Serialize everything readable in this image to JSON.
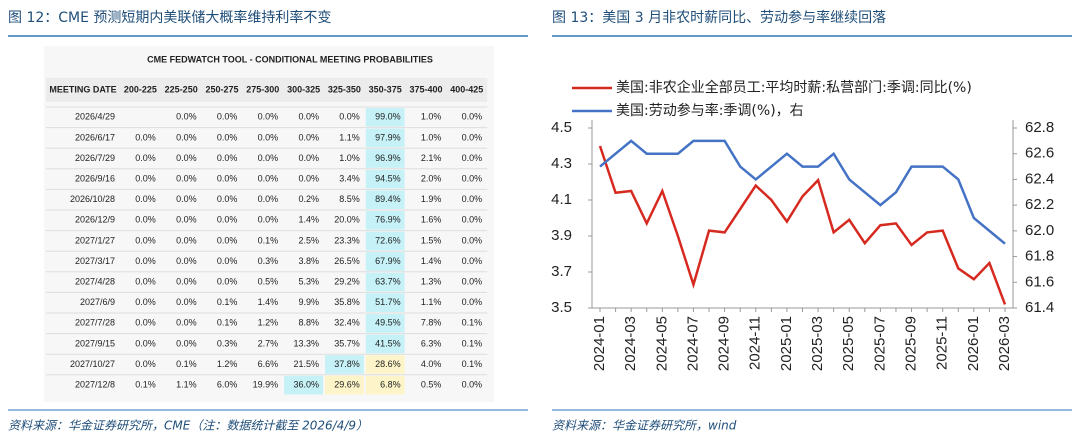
{
  "figure_left": {
    "title": "图 12：CME 预测短期内美联储大概率维持利率不变",
    "table": {
      "title": "CME FEDWATCH TOOL - CONDITIONAL MEETING PROBABILITIES",
      "header": [
        "MEETING DATE",
        "200-225",
        "225-250",
        "250-275",
        "275-300",
        "300-325",
        "325-350",
        "350-375",
        "375-400",
        "400-425"
      ],
      "rows": [
        [
          "2026/4/29",
          null,
          "0.0%",
          "0.0%",
          "0.0%",
          "0.0%",
          "0.0%",
          "99.0%",
          "1.0%",
          "0.0%"
        ],
        [
          "2026/6/17",
          "0.0%",
          "0.0%",
          "0.0%",
          "0.0%",
          "0.0%",
          "1.1%",
          "97.9%",
          "1.0%",
          "0.0%"
        ],
        [
          "2026/7/29",
          "0.0%",
          "0.0%",
          "0.0%",
          "0.0%",
          "0.0%",
          "1.0%",
          "96.9%",
          "2.1%",
          "0.0%"
        ],
        [
          "2026/9/16",
          "0.0%",
          "0.0%",
          "0.0%",
          "0.0%",
          "0.0%",
          "3.4%",
          "94.5%",
          "2.0%",
          "0.0%"
        ],
        [
          "2026/10/28",
          "0.0%",
          "0.0%",
          "0.0%",
          "0.0%",
          "0.2%",
          "8.5%",
          "89.4%",
          "1.9%",
          "0.0%"
        ],
        [
          "2026/12/9",
          "0.0%",
          "0.0%",
          "0.0%",
          "0.0%",
          "1.4%",
          "20.0%",
          "76.9%",
          "1.6%",
          "0.0%"
        ],
        [
          "2027/1/27",
          "0.0%",
          "0.0%",
          "0.0%",
          "0.1%",
          "2.5%",
          "23.3%",
          "72.6%",
          "1.5%",
          "0.0%"
        ],
        [
          "2027/3/17",
          "0.0%",
          "0.0%",
          "0.0%",
          "0.3%",
          "3.8%",
          "26.5%",
          "67.9%",
          "1.4%",
          "0.0%"
        ],
        [
          "2027/4/28",
          "0.0%",
          "0.0%",
          "0.0%",
          "0.5%",
          "5.3%",
          "29.2%",
          "63.7%",
          "1.3%",
          "0.0%"
        ],
        [
          "2027/6/9",
          "0.0%",
          "0.0%",
          "0.1%",
          "1.4%",
          "9.9%",
          "35.8%",
          "51.7%",
          "1.1%",
          "0.0%"
        ],
        [
          "2027/7/28",
          "0.0%",
          "0.0%",
          "0.1%",
          "1.2%",
          "8.8%",
          "32.4%",
          "49.5%",
          "7.8%",
          "0.1%"
        ],
        [
          "2027/9/15",
          "0.0%",
          "0.0%",
          "0.3%",
          "2.7%",
          "13.3%",
          "35.7%",
          "41.5%",
          "6.3%",
          "0.1%"
        ],
        [
          "2027/10/27",
          "0.0%",
          "0.1%",
          "1.2%",
          "6.6%",
          "21.5%",
          "37.8%",
          "28.6%",
          "4.0%",
          "0.1%"
        ],
        [
          "2027/12/8",
          "0.1%",
          "1.1%",
          "6.0%",
          "19.9%",
          "36.0%",
          "29.6%",
          "6.8%",
          "0.5%",
          "0.0%"
        ]
      ]
    },
    "source": "资料来源：华金证券研究所，CME（注：数据统计截至 2026/4/9）"
  },
  "figure_right": {
    "title": "图 13：美国 3 月非农时薪同比、劳动参与率继续回落",
    "source": "资料来源：华金证券研究所，wind"
  },
  "chart_data": {
    "type": "line",
    "categories": [
      "2024-01",
      null,
      "2024-03",
      null,
      "2024-05",
      null,
      "2024-07",
      null,
      "2024-09",
      null,
      "2024-11",
      null,
      "2025-01",
      null,
      "2025-03",
      null,
      "2025-05",
      null,
      "2025-07",
      null,
      "2025-09",
      null,
      "2025-11",
      null,
      "2026-01",
      null,
      "2026-03"
    ],
    "series": [
      {
        "name": "美国:非农企业全部员工:平均时薪:私营部门:季调:同比(%)",
        "color": "#d62a20",
        "values": [
          4.4,
          4.14,
          4.15,
          3.97,
          4.15,
          3.9,
          3.63,
          3.93,
          3.92,
          4.05,
          4.18,
          4.1,
          3.98,
          4.12,
          4.21,
          3.92,
          3.99,
          3.86,
          3.96,
          3.97,
          3.85,
          3.92,
          3.93,
          3.72,
          3.66,
          3.75,
          3.52
        ]
      },
      {
        "name": "美国:劳动参与率:季调(%)，右",
        "color": "#4472c4",
        "axis": "y2",
        "values": [
          62.5,
          62.6,
          62.7,
          62.6,
          62.6,
          62.6,
          62.7,
          62.7,
          62.7,
          62.5,
          62.4,
          62.5,
          62.6,
          62.5,
          62.5,
          62.6,
          62.4,
          62.3,
          62.2,
          62.3,
          62.5,
          62.5,
          62.5,
          62.4,
          62.1,
          62.0,
          61.9
        ]
      }
    ],
    "ylim": [
      3.5,
      4.5
    ],
    "yticks": [
      3.5,
      3.7,
      3.9,
      4.1,
      4.3,
      4.5
    ],
    "y2lim": [
      61.4,
      62.8
    ],
    "y2ticks": [
      61.4,
      61.6,
      61.8,
      {
        "value": 62,
        "label": "62.0"
      },
      62.2,
      62.4,
      62.6,
      62.8
    ],
    "legend": "top"
  }
}
